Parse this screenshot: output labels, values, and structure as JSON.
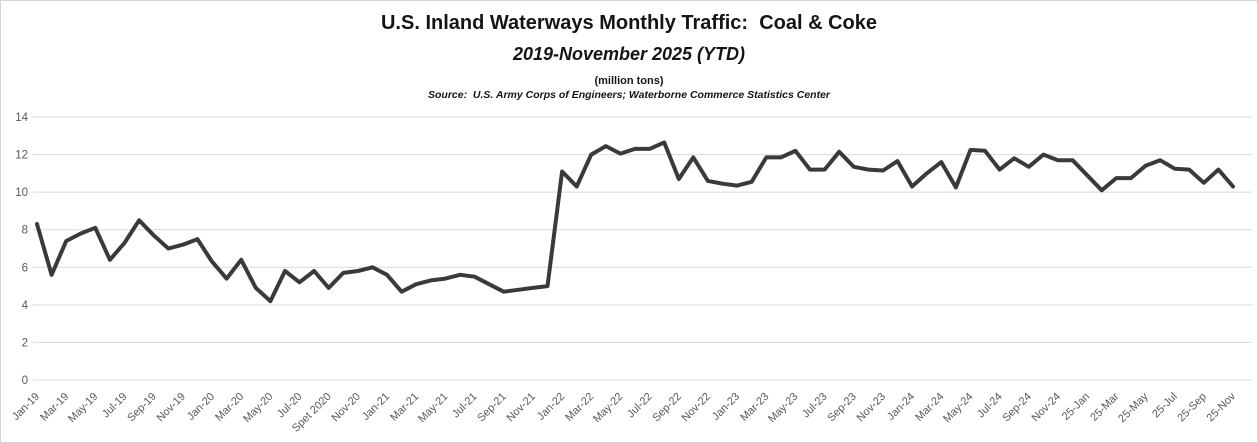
{
  "header": {
    "title": "U.S. Inland Waterways Monthly Traffic:  Coal & Coke",
    "subtitle": "2019-November 2025 (YTD)",
    "units_note": "(million tons)",
    "source_note": "Source:  U.S. Army Corps of Engineers; Waterborne Commerce Statistics Center"
  },
  "chart_data": {
    "type": "line",
    "title": "U.S. Inland Waterways Monthly Traffic: Coal & Coke",
    "subtitle": "2019-November 2025 (YTD)",
    "ylabel": "million tons",
    "start_period": "Jan-2019",
    "end_period": "Nov-2025",
    "series": [
      {
        "name": "Coal & Coke",
        "values": [
          8.3,
          5.6,
          7.4,
          7.8,
          8.1,
          6.4,
          7.3,
          8.5,
          7.7,
          7.0,
          7.2,
          7.5,
          6.3,
          5.4,
          6.4,
          4.9,
          4.2,
          5.8,
          5.2,
          5.8,
          4.9,
          5.7,
          5.8,
          6.0,
          5.6,
          4.7,
          5.1,
          5.3,
          5.4,
          5.6,
          5.5,
          5.1,
          4.7,
          4.8,
          4.9,
          5.0,
          11.1,
          10.3,
          12.0,
          12.45,
          12.05,
          12.3,
          12.3,
          12.65,
          10.7,
          11.85,
          10.6,
          10.45,
          10.35,
          10.55,
          11.85,
          11.85,
          12.2,
          11.2,
          11.2,
          12.15,
          11.35,
          11.2,
          11.15,
          11.65,
          10.3,
          11.0,
          11.6,
          10.25,
          12.25,
          12.2,
          11.2,
          11.8,
          11.35,
          12.0,
          11.7,
          11.7,
          10.9,
          10.1,
          10.75,
          10.75,
          11.4,
          11.7,
          11.25,
          11.2,
          10.5,
          11.2,
          10.3
        ]
      }
    ],
    "x_tick_labels": [
      "Jan-19",
      "Mar-19",
      "May-19",
      "Jul-19",
      "Sep-19",
      "Nov-19",
      "Jan-20",
      "Mar-20",
      "May-20",
      "Jul-20",
      "Spet 2020",
      "Nov-20",
      "Jan-21",
      "Mar-21",
      "May-21",
      "Jul-21",
      "Sep-21",
      "Nov-21",
      "Jan-22",
      "Mar-22",
      "May-22",
      "Jul-22",
      "Sep-22",
      "Nov-22",
      "Jan-23",
      "Mar-23",
      "May-23",
      "Jul-23",
      "Sep-23",
      "Nov-23",
      "Jan-24",
      "Mar-24",
      "May-24",
      "Jul-24",
      "Sep-24",
      "Nov-24",
      "25-Jan",
      "25-Mar",
      "25-May",
      "25-Jul",
      "25-Sep",
      "25-Nov"
    ],
    "x_tick_step_months": 2,
    "x_tick_rotation_deg": -45,
    "ylim": [
      0,
      14
    ],
    "yticks": [
      0,
      2,
      4,
      6,
      8,
      10,
      12,
      14
    ],
    "grid": "horizontal",
    "legend": "none",
    "line_color": "#3a3a3a",
    "gridline_color": "#d9d9d9",
    "tick_label_color": "#595959"
  }
}
